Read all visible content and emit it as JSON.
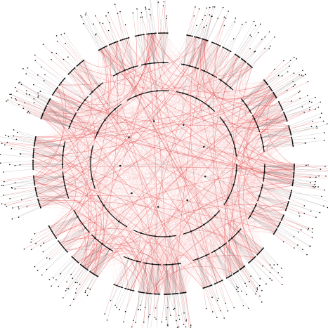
{
  "diagram": {
    "type": "radial-hierarchical-edge-bundling",
    "labels_visible": false,
    "colors": {
      "background": "#ffffff",
      "tree_edge": "#8c8c8c",
      "cross_link": "#e23b3b",
      "cross_link_light": "#f4a6a6",
      "node": "#111111",
      "ring_arc": "#1a1a1a"
    },
    "levels": 5,
    "ring_count": 4
  }
}
